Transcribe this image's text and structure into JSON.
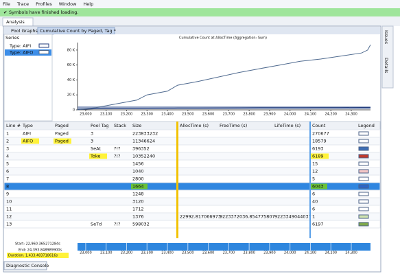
{
  "menu": [
    "File",
    "Trace",
    "Profiles",
    "Window",
    "Help"
  ],
  "status": "Symbols have finished loading.",
  "tab": "Analysis",
  "side_tabs": [
    "Issues",
    "Details"
  ],
  "toolbar": {
    "pane": "Pool Graphs",
    "view": "Cumulative Count by Paged, Tag *"
  },
  "series_panel": {
    "title": "Series"
  },
  "chart_data": {
    "type": "line",
    "title": "Cumulative Count at AllocTime (Aggregation: Sum)",
    "x": [
      22960,
      23050,
      23150,
      23250,
      23300,
      23400,
      23450,
      23550,
      23650,
      23750,
      23850,
      23950,
      24050,
      24150,
      24250,
      24350,
      24380,
      24394
    ],
    "series": [
      {
        "name": "Type: AIFI",
        "color": "#1f3a7a",
        "values": [
          500,
          1500,
          2000,
          2200,
          2300,
          2400,
          2500,
          2600,
          2700,
          2800,
          2900,
          3000,
          3000,
          3100,
          3100,
          3200,
          3200,
          3200
        ]
      },
      {
        "name": "Type: AIFO",
        "color": "#4f6a8f",
        "values": [
          0,
          3000,
          8000,
          13000,
          20000,
          25000,
          33000,
          38000,
          44000,
          50000,
          55000,
          60000,
          65000,
          68000,
          72000,
          76000,
          80000,
          87000
        ]
      }
    ],
    "xlim": [
      22960,
      24394
    ],
    "ylim": [
      0,
      90000
    ],
    "xticks": [
      {
        "value": 23000,
        "label": "23,000"
      },
      {
        "value": 23100,
        "label": "23,100"
      },
      {
        "value": 23200,
        "label": "23,200"
      },
      {
        "value": 23300,
        "label": "23,300"
      },
      {
        "value": 23400,
        "label": "23,400"
      },
      {
        "value": 23500,
        "label": "23,500"
      },
      {
        "value": 23600,
        "label": "23,600"
      },
      {
        "value": 23700,
        "label": "23,700"
      },
      {
        "value": 23800,
        "label": "23,800"
      },
      {
        "value": 23900,
        "label": "23,900"
      },
      {
        "value": 24000,
        "label": "24,000"
      },
      {
        "value": 24100,
        "label": "24,100"
      },
      {
        "value": 24200,
        "label": "24,200"
      },
      {
        "value": 24300,
        "label": "24,300"
      }
    ],
    "yticks": [
      0,
      {
        "value": 20000,
        "label": "20 K"
      },
      {
        "value": 40000,
        "label": "40 K"
      },
      {
        "value": 60000,
        "label": "60 K"
      },
      {
        "value": 80000,
        "label": "80 K"
      }
    ],
    "grid": false
  },
  "table": {
    "columns": [
      "Line #",
      "Type",
      "Paged",
      "Pool Tag",
      "Stack",
      "Size",
      "AllocTime (s)",
      "FreeTime (s)",
      "LifeTime (s)",
      "Count",
      "Legend"
    ],
    "rows": [
      [
        "1",
        "AIFI",
        "Paged",
        "3",
        null,
        "223833232",
        null,
        null,
        null,
        "270677"
      ],
      [
        "2",
        "AIFO",
        "Paged",
        "3",
        null,
        "11346624",
        null,
        null,
        null,
        "18579"
      ],
      [
        "3",
        null,
        null,
        "SeAt",
        "?!?",
        "396352",
        null,
        null,
        null,
        "6193"
      ],
      [
        "4",
        null,
        null,
        "Toke",
        "?!?",
        "10352240",
        null,
        null,
        null,
        "6189"
      ],
      [
        "5",
        null,
        null,
        null,
        null,
        "1456",
        null,
        null,
        null,
        "15"
      ],
      [
        "6",
        null,
        null,
        null,
        null,
        "1040",
        null,
        null,
        null,
        "12"
      ],
      [
        "7",
        null,
        null,
        null,
        null,
        "2800",
        null,
        null,
        null,
        "5"
      ],
      [
        "8",
        null,
        null,
        null,
        null,
        "1664",
        null,
        null,
        null,
        "6043"
      ],
      [
        "9",
        null,
        null,
        null,
        null,
        "1248",
        null,
        null,
        null,
        "6"
      ],
      [
        "10",
        null,
        null,
        null,
        null,
        "3120",
        null,
        null,
        null,
        "40"
      ],
      [
        "11",
        null,
        null,
        null,
        null,
        "1712",
        null,
        null,
        null,
        "6"
      ],
      [
        "12",
        null,
        null,
        null,
        null,
        "1376",
        "22992.817066973",
        "9223372036.854775807",
        "9223349044037",
        "1"
      ],
      [
        "13",
        null,
        null,
        "SeTd",
        "?!?",
        "598032",
        null,
        null,
        null,
        "6197"
      ]
    ],
    "legend_colors": [
      "#ffffff",
      "#ffffff",
      "#3f6fb5",
      "#c0392b",
      "#ffffff",
      "#f3c6c6",
      "#ffffff",
      "#2a66c9",
      "#ffffff",
      "#ffffff",
      "#ffffff",
      "#cfe3b0",
      "#7ea84a"
    ],
    "selected_row": 7
  },
  "timeline": {
    "start": "Start:  22,960.365271284s",
    "end": "End:  24,393.848989900s",
    "duration": "Duration:  1,433.483718616s"
  },
  "console": "Diagnostic Console"
}
